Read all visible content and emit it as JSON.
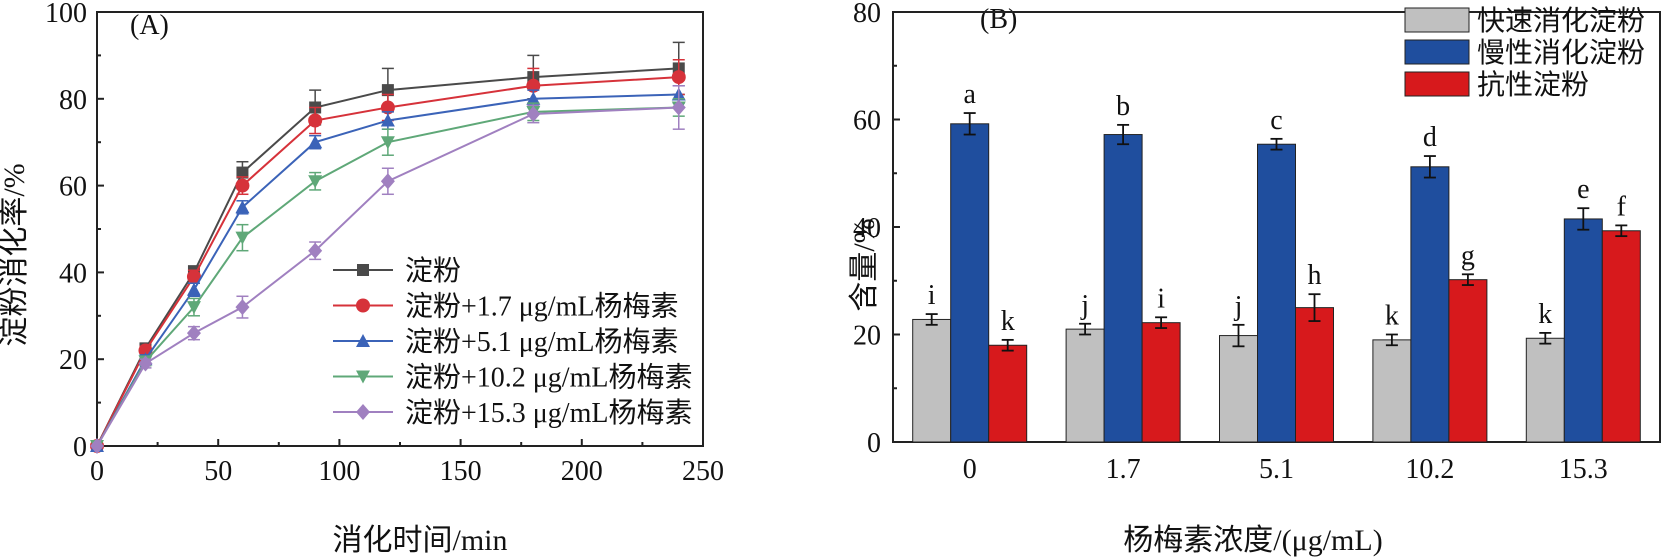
{
  "chart_data": [
    {
      "type": "line",
      "panel_label": "(A)",
      "xlabel": "消化时间/min",
      "ylabel": "淀粉消化率/%",
      "xlim": [
        0,
        250
      ],
      "ylim": [
        0,
        100
      ],
      "xticks": [
        0,
        50,
        100,
        150,
        200,
        250
      ],
      "yticks": [
        0,
        20,
        40,
        60,
        80,
        100
      ],
      "legend_position": "lower-right",
      "x": [
        0,
        20,
        40,
        60,
        90,
        120,
        180,
        240
      ],
      "series": [
        {
          "name": "淀粉",
          "color": "#4a4a4a",
          "marker": "square",
          "values": [
            0,
            22.5,
            40,
            63,
            78,
            82,
            85,
            87
          ],
          "errors": [
            0,
            1,
            1.5,
            2.5,
            4,
            5,
            5,
            6
          ]
        },
        {
          "name": "淀粉+1.7 μg/mL杨梅素",
          "color": "#d6323a",
          "marker": "circle",
          "values": [
            0,
            22,
            39,
            60,
            75,
            78,
            83,
            85
          ],
          "errors": [
            0,
            1,
            1.5,
            2,
            3,
            3,
            4,
            4
          ]
        },
        {
          "name": "淀粉+5.1 μg/mL杨梅素",
          "color": "#3b63b8",
          "marker": "triangle-up",
          "values": [
            0,
            20,
            36,
            55,
            70,
            75,
            80,
            81
          ],
          "errors": [
            0,
            1,
            1.5,
            1.5,
            1.5,
            2,
            2,
            2
          ]
        },
        {
          "name": "淀粉+10.2 μg/mL杨梅素",
          "color": "#5fa878",
          "marker": "triangle-down",
          "values": [
            0,
            19.5,
            32,
            48,
            61,
            70,
            77,
            78
          ],
          "errors": [
            0,
            1,
            2,
            3,
            2,
            3,
            2,
            2
          ]
        },
        {
          "name": "淀粉+15.3 μg/mL杨梅素",
          "color": "#a080c0",
          "marker": "diamond",
          "values": [
            0,
            19,
            26,
            32,
            45,
            61,
            76.5,
            78
          ],
          "errors": [
            0,
            1,
            1.5,
            2.5,
            2,
            3,
            2,
            5
          ]
        }
      ]
    },
    {
      "type": "bar",
      "panel_label": "(B)",
      "xlabel": "杨梅素浓度/(μg/mL)",
      "ylabel": "含量/%",
      "ylim": [
        0,
        80
      ],
      "yticks": [
        0,
        20,
        40,
        60,
        80
      ],
      "legend_position": "top-right",
      "categories": [
        "0",
        "1.7",
        "5.1",
        "10.2",
        "15.3"
      ],
      "series": [
        {
          "name": "快速消化淀粉",
          "color": "#c0c0c0",
          "values": [
            22.8,
            21,
            19.8,
            19,
            19.3
          ],
          "errors": [
            1,
            1,
            2,
            1,
            1
          ],
          "labels": [
            "i",
            "j",
            "j",
            "k",
            "k"
          ]
        },
        {
          "name": "慢性消化淀粉",
          "color": "#1f4e9e",
          "values": [
            59.2,
            57.2,
            55.4,
            51.2,
            41.5
          ],
          "errors": [
            2,
            1.8,
            1,
            2,
            2
          ],
          "labels": [
            "a",
            "b",
            "c",
            "d",
            "e"
          ]
        },
        {
          "name": "抗性淀粉",
          "color": "#d7191c",
          "values": [
            18,
            22.2,
            25,
            30.2,
            39.3
          ],
          "errors": [
            1,
            1,
            2.5,
            1,
            1
          ],
          "labels": [
            "k",
            "i",
            "h",
            "g",
            "f"
          ]
        }
      ]
    }
  ]
}
